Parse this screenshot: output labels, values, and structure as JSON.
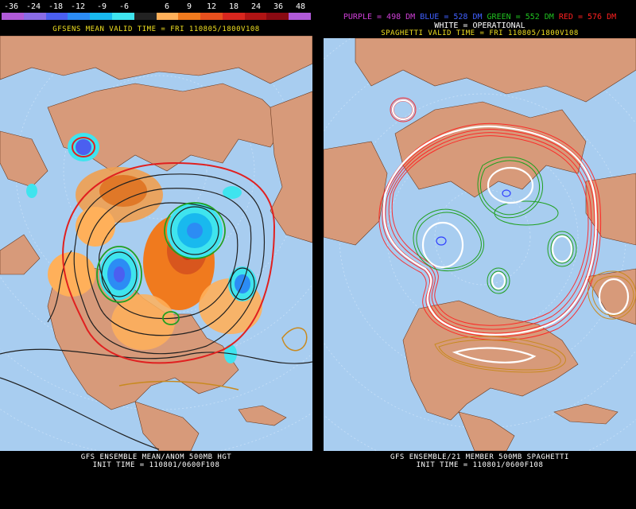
{
  "left": {
    "colorbar_labels": [
      "-36",
      "-24",
      "-18",
      "-12",
      "-9",
      "-6",
      "6",
      "9",
      "12",
      "18",
      "24",
      "36",
      "48"
    ],
    "colorbar_colors": [
      "#b05ad8",
      "#8a6ce6",
      "#4b5ff0",
      "#2c8cf4",
      "#19b9ee",
      "#3fe4ee",
      "#222222",
      "#ffb05a",
      "#f07a1e",
      "#e8501e",
      "#d8261e",
      "#b01414",
      "#8a0a12",
      "#b05ad8"
    ],
    "header": "GFSENS MEAN VALID TIME = FRI 110805/1800V108",
    "footer_line1": "GFS ENSEMBLE MEAN/ANOM 500MB HGT",
    "footer_line2": "INIT TIME = 110801/0600F108"
  },
  "right": {
    "legend": [
      {
        "text": "PURPLE = 498 DM",
        "color": "#d040d8"
      },
      {
        "text": "BLUE = 528 DM",
        "color": "#4060ff"
      },
      {
        "text": "GREEN = 552 DM",
        "color": "#20c020"
      },
      {
        "text": "RED = 576 DM",
        "color": "#ff2020"
      }
    ],
    "operational": "WHITE = OPERATIONAL",
    "header": "SPAGHETTI VALID TIME = FRI 110805/1800V108",
    "footer_line1": "GFS ENSEMBLE/21 MEMBER 500MB SPAGHETTI",
    "footer_line2": "INIT TIME = 110801/0600F108"
  }
}
